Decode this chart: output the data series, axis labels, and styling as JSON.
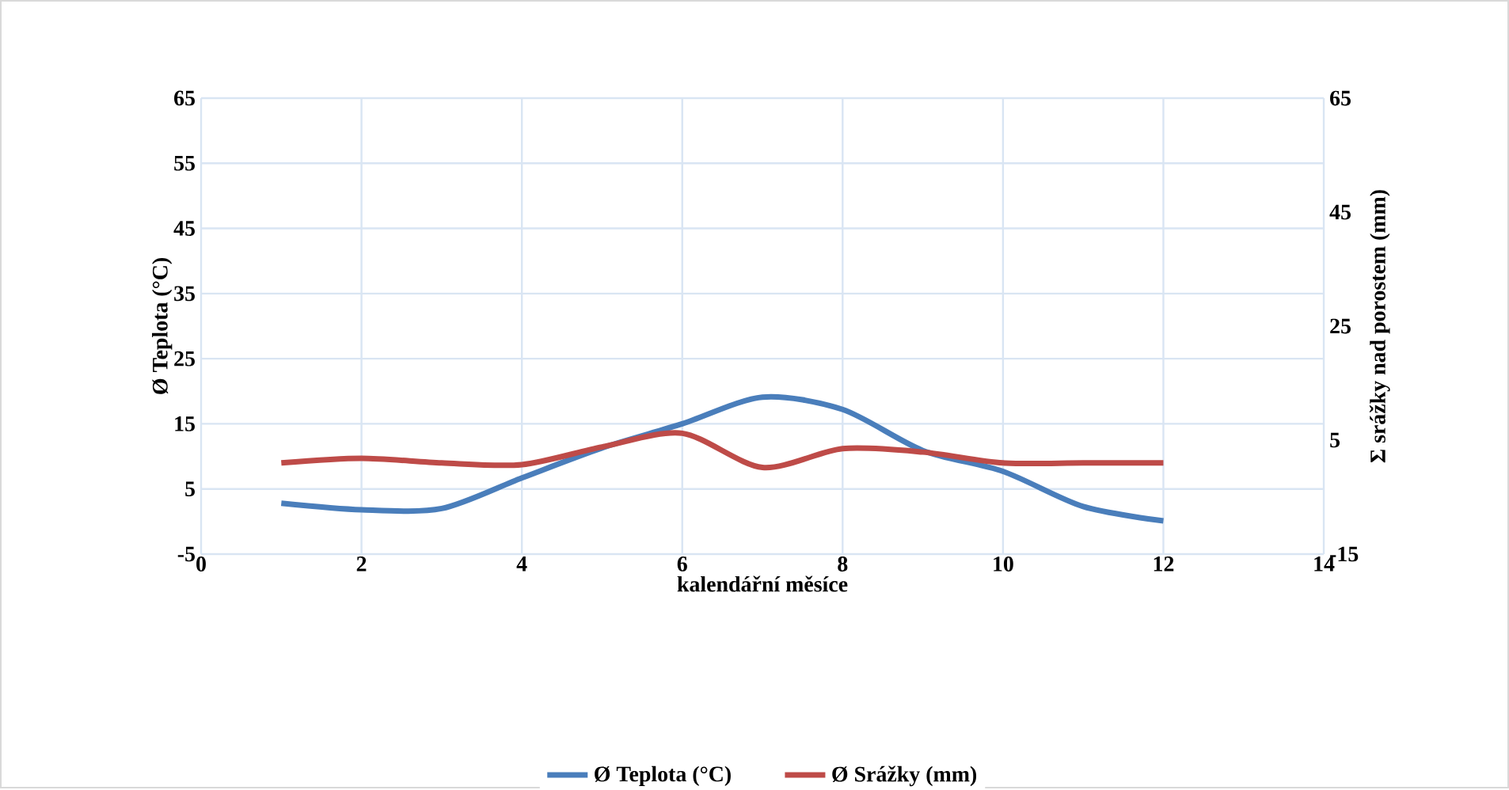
{
  "chart_data": {
    "type": "line",
    "xlabel": "kalendářní měsíce",
    "ylabel": "Ø Teplota (°C)",
    "y2label": "Σ srážky nad porostem (mm)",
    "x": [
      1,
      2,
      3,
      4,
      5,
      6,
      7,
      8,
      9,
      10,
      11,
      12
    ],
    "series": [
      {
        "name": "Ø Teplota (°C)",
        "color": "#4a7ebb",
        "values": [
          2.8,
          1.8,
          2.0,
          6.7,
          11.3,
          15,
          19.1,
          17.2,
          10.9,
          7.7,
          2.3,
          0.1
        ]
      },
      {
        "name": "Ø Srážky (mm)",
        "color": "#be4b48",
        "axis": "y2",
        "values": [
          1.0,
          1.8,
          1.0,
          0.7,
          3.8,
          6.2,
          0.2,
          3.5,
          2.9,
          1.0,
          1.0,
          1.0
        ]
      }
    ],
    "xlim": [
      0,
      14
    ],
    "xticks": [
      0,
      2,
      4,
      6,
      8,
      10,
      12,
      14
    ],
    "ylim": [
      -5,
      65
    ],
    "yticks": [
      -5,
      5,
      15,
      25,
      35,
      45,
      55,
      65
    ],
    "y2lim": [
      -15,
      65
    ],
    "y2ticks": [
      -15,
      5,
      25,
      45,
      65
    ],
    "grid": true,
    "legend": "bottom",
    "marker": "none",
    "line_style": "solid"
  }
}
